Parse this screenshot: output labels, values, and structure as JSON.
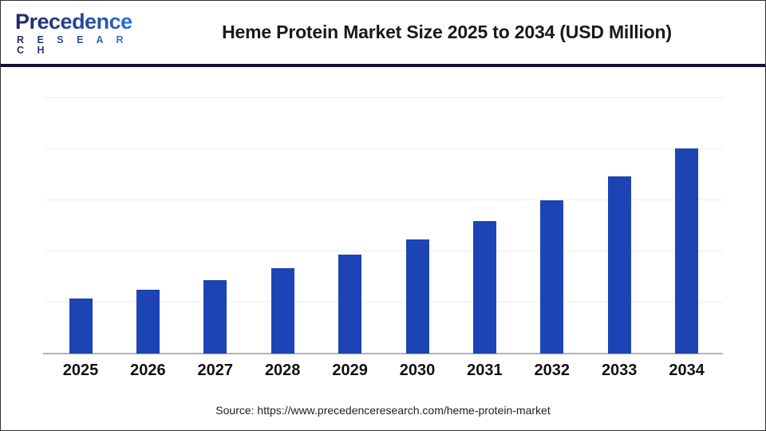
{
  "header": {
    "logo": {
      "name": "Precedence",
      "research": "R E S E A R C H"
    },
    "title": "Heme Protein Market Size 2025 to 2034 (USD Million)"
  },
  "footer": {
    "source": "Source: https://www.precedenceresearch.com/heme-protein-market"
  },
  "colors": {
    "bar": "#1c44b4",
    "divider": "#0e1236",
    "gridline": "#ececef",
    "axis_line": "#b3b3b6",
    "logo_navy": "#1f2a63",
    "logo_blue": "#2e6fe0",
    "title_text": "#191919"
  },
  "chart_data": {
    "type": "bar",
    "title": "Heme Protein Market Size 2025 to 2034 (USD Million)",
    "categories": [
      "2025",
      "2026",
      "2027",
      "2028",
      "2029",
      "2030",
      "2031",
      "2032",
      "2033",
      "2034"
    ],
    "values": [
      578.51,
      669.86,
      775.62,
      898.09,
      1039.89,
      1204.08,
      1394.21,
      1614.35,
      1869.25,
      2161.96
    ],
    "unit": "USD Million",
    "xlabel": "",
    "ylabel": "",
    "ylim": [
      0,
      2900
    ],
    "grid": true,
    "gridline_count": 5,
    "y_tick_labels_visible": false,
    "legend": "none",
    "bar_color": "#1c44b4"
  }
}
